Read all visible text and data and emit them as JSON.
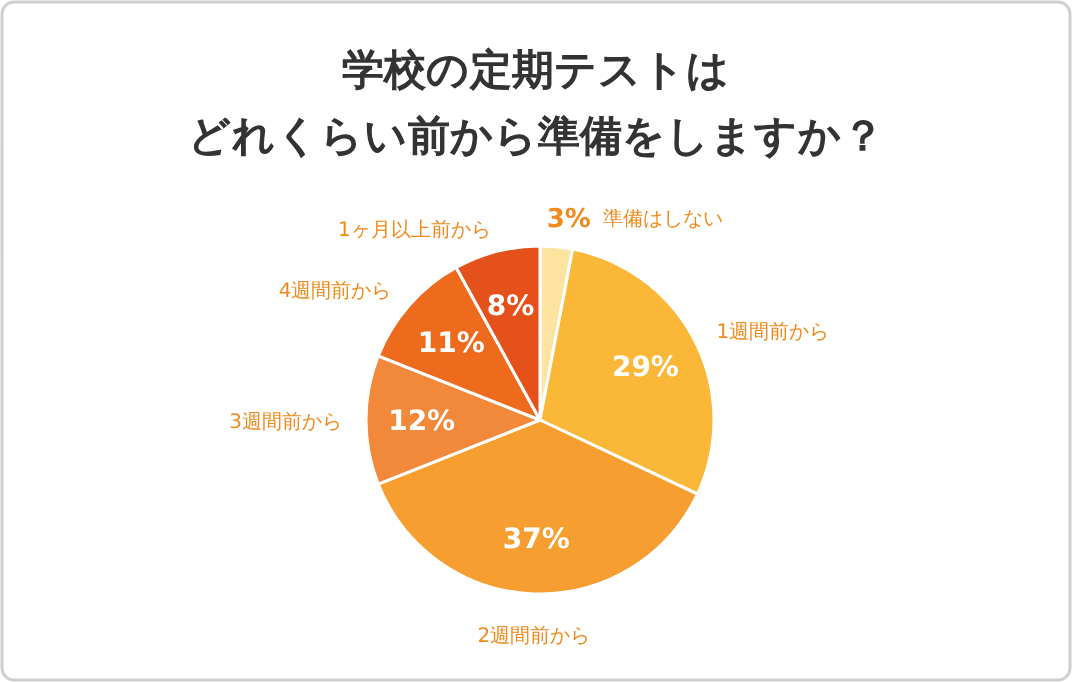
{
  "chart_data": {
    "type": "pie",
    "title": "学校の定期テストは",
    "subtitle": "どれくらい前から準備をしますか？",
    "categories": [
      "準備はしない",
      "1週間前から",
      "2週間前から",
      "3週間前から",
      "4週間前から",
      "1ヶ月以上前から"
    ],
    "values": [
      3,
      29,
      37,
      12,
      11,
      8
    ],
    "value_labels": [
      "3%",
      "29%",
      "37%",
      "12%",
      "11%",
      "8%"
    ],
    "colors": [
      "#fde3a0",
      "#fbb838",
      "#f79e30",
      "#f2883a",
      "#ee6b1e",
      "#e4511a"
    ],
    "legend": false
  }
}
